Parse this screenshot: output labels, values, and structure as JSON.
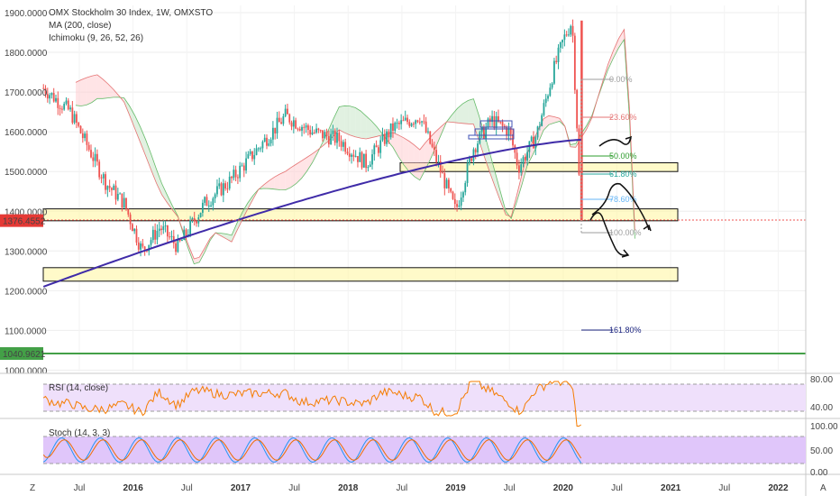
{
  "header": {
    "title": "OMX Stockholm 30 Index, 1W, OMXSTO",
    "ma_label": "MA (200, close)",
    "ichimoku_label": "Ichimoku (9, 26, 52, 26)"
  },
  "price_axis": {
    "ticks": [
      "1900.0000",
      "1800.0000",
      "1700.0000",
      "1600.0000",
      "1500.0000",
      "1400.0000",
      "1300.0000",
      "1200.0000",
      "1100.0000",
      "1000.0000"
    ],
    "current_price": "1376.4552",
    "green_level": "1040.9621"
  },
  "rsi": {
    "label": "RSI (14, close)",
    "ticks": [
      "80.00",
      "40.00"
    ]
  },
  "stoch": {
    "label": "Stoch (14, 3, 3)",
    "ticks": [
      "100.00",
      "50.00",
      "0.00"
    ]
  },
  "time_axis": {
    "labels": [
      "Jul",
      "2016",
      "Jul",
      "2017",
      "Jul",
      "2018",
      "Jul",
      "2019",
      "Jul",
      "2020",
      "Jul",
      "2021",
      "Jul",
      "2022"
    ]
  },
  "fib_levels": [
    {
      "label": "0.00%",
      "color": "#9e9e9e"
    },
    {
      "label": "23.60%",
      "color": "#e57373"
    },
    {
      "label": "50.00%",
      "color": "#2e9d2e"
    },
    {
      "label": "61.80%",
      "color": "#26a69a"
    },
    {
      "label": "78.60%",
      "color": "#64b5f6"
    },
    {
      "label": "100.00%",
      "color": "#9e9e9e"
    },
    {
      "label": "161.80%",
      "color": "#1a237e"
    }
  ],
  "toolbar": {
    "left_button": "Z",
    "right_button": "A"
  },
  "colors": {
    "up": "#26a69a",
    "down": "#ef5350",
    "ma": "#3f2ba8",
    "cloud_green": "#c8e6c9",
    "cloud_red": "#ffcdd2",
    "zone": "#fff59d",
    "rsi_line": "#f57c00",
    "stoch_k": "#2196f3",
    "stoch_d": "#ef6c00"
  },
  "chart_data": {
    "type": "candlestick",
    "title": "OMX Stockholm 30 Index, 1W, OMXSTO",
    "ylim": [
      990,
      1920
    ],
    "series_anchors": {
      "x": [
        "2015-03",
        "2015-06",
        "2015-08",
        "2015-10",
        "2015-12",
        "2016-02",
        "2016-04",
        "2016-06",
        "2016-09",
        "2016-12",
        "2017-03",
        "2017-06",
        "2017-09",
        "2017-12",
        "2018-03",
        "2018-06",
        "2018-09",
        "2018-11",
        "2019-01",
        "2019-03",
        "2019-05",
        "2019-07",
        "2019-08",
        "2019-10",
        "2019-12",
        "2020-01",
        "2020-02",
        "2020-03"
      ],
      "close": [
        1710,
        1650,
        1560,
        1470,
        1420,
        1300,
        1360,
        1310,
        1420,
        1480,
        1560,
        1640,
        1600,
        1580,
        1520,
        1610,
        1640,
        1520,
        1400,
        1560,
        1630,
        1600,
        1510,
        1590,
        1760,
        1830,
        1880,
        1376
      ]
    },
    "ma200_range": [
      1210,
      1580
    ],
    "zones": [
      {
        "from": 1500,
        "to": 1522
      },
      {
        "from": 1376,
        "to": 1406
      },
      {
        "from": 1224,
        "to": 1258
      }
    ]
  }
}
